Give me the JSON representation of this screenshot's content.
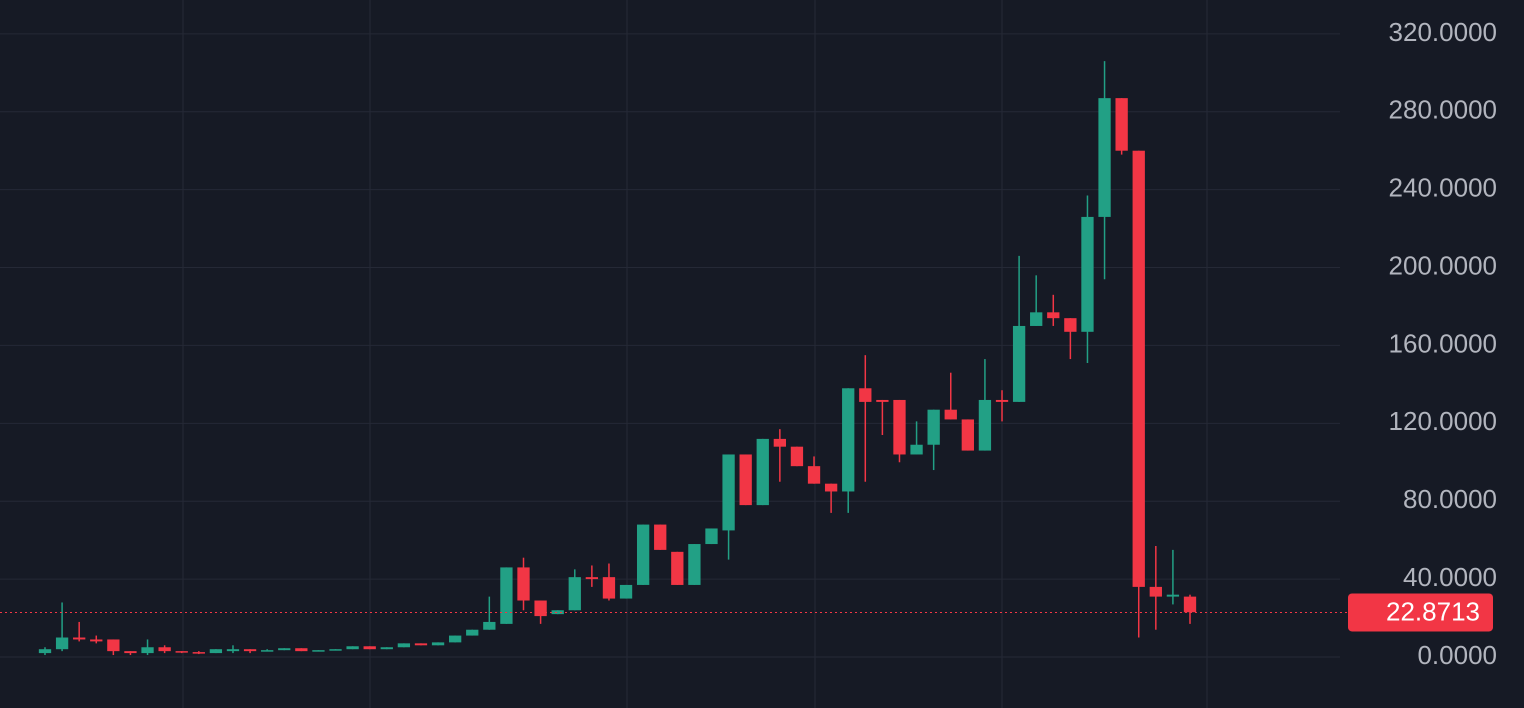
{
  "chart_data": {
    "type": "candlestick",
    "open": [
      2,
      4,
      10,
      9,
      9,
      3,
      2,
      5,
      3,
      2.5,
      2,
      3,
      4,
      3,
      3.5,
      4.5,
      3,
      3.5,
      4,
      5.5,
      4,
      5,
      7,
      6,
      7.5,
      11,
      14,
      17,
      46,
      29,
      22,
      24,
      41,
      41,
      30,
      37,
      68,
      54,
      37,
      58,
      65,
      104,
      78,
      112,
      108,
      98,
      89,
      85,
      138,
      132,
      132,
      104,
      109,
      127,
      122,
      106,
      132,
      131,
      170,
      177,
      174,
      167,
      226,
      287,
      260,
      36,
      31,
      31
    ],
    "high": [
      5,
      28,
      18,
      11,
      9,
      3,
      9,
      6,
      3,
      3,
      4,
      6,
      4,
      4,
      4.5,
      4.5,
      3.5,
      4,
      5.5,
      5.5,
      5,
      7,
      7,
      7.5,
      11,
      14,
      31,
      46,
      51,
      29,
      24,
      45,
      47,
      48,
      37,
      68,
      68,
      54,
      58,
      66,
      104,
      104,
      112,
      117,
      108,
      103,
      89,
      138,
      155,
      132,
      132,
      121,
      127,
      146,
      122,
      153,
      137,
      206,
      196,
      186,
      174,
      237,
      306,
      287,
      260,
      57,
      55,
      32
    ],
    "low": [
      1,
      3,
      8,
      7,
      1,
      1,
      1,
      2,
      2,
      1.5,
      2,
      2,
      2,
      3,
      3.5,
      3,
      3,
      3.5,
      4,
      4,
      4,
      5,
      6,
      6,
      7.5,
      11,
      14,
      17,
      24,
      17,
      22,
      24,
      36,
      29,
      30,
      37,
      55,
      37,
      37,
      58,
      50,
      78,
      78,
      90,
      98,
      89,
      74,
      74,
      90,
      114,
      100,
      104,
      96,
      122,
      106,
      106,
      121,
      131,
      170,
      170,
      153,
      151,
      194,
      258,
      10,
      14,
      27,
      17
    ],
    "close": [
      4,
      10,
      9,
      8,
      3,
      2,
      5,
      3,
      2.5,
      2,
      4,
      4,
      3,
      3.5,
      4.5,
      3,
      3.5,
      4,
      5.5,
      4,
      5,
      7,
      6,
      7.5,
      11,
      14,
      18,
      46,
      29,
      21,
      24,
      41,
      40,
      30,
      37,
      68,
      55,
      37,
      58,
      66,
      104,
      78,
      112,
      108,
      98,
      89,
      85,
      138,
      131,
      131,
      104,
      109,
      127,
      122,
      106,
      132,
      131,
      170,
      177,
      174,
      167,
      226,
      287,
      260,
      36,
      31,
      32,
      23
    ],
    "up_color": "#22a085",
    "down_color": "#f23645",
    "ylim": [
      -26.2,
      337.4
    ],
    "yticks": [
      {
        "value": 0,
        "label": "0.0000"
      },
      {
        "value": 40,
        "label": "40.0000"
      },
      {
        "value": 80,
        "label": "80.0000"
      },
      {
        "value": 120,
        "label": "120.0000"
      },
      {
        "value": 160,
        "label": "160.0000"
      },
      {
        "value": 200,
        "label": "200.0000"
      },
      {
        "value": 240,
        "label": "240.0000"
      },
      {
        "value": 280,
        "label": "280.0000"
      },
      {
        "value": 320,
        "label": "320.0000"
      }
    ],
    "last_price": 22.8713,
    "grid": true
  }
}
